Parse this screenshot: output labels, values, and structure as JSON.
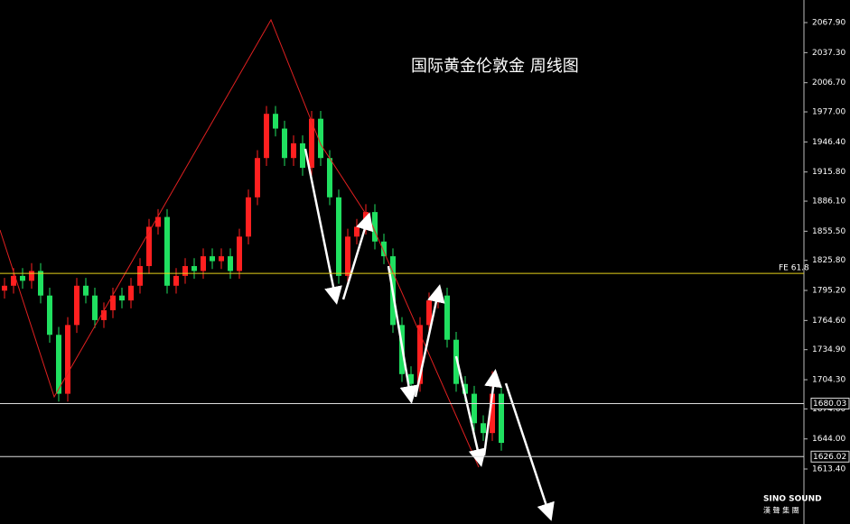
{
  "chart_data": {
    "type": "candlestick",
    "title": "国际黄金伦敦金 周线图",
    "brand": "SINO SOUND",
    "brand_sub": "漢 聲 集 團",
    "ylim": [
      1557.4,
      2090.9
    ],
    "yticks": [
      {
        "value": 2067.9,
        "label": "2067.90"
      },
      {
        "value": 2037.3,
        "label": "2037.30"
      },
      {
        "value": 2006.7,
        "label": "2006.70"
      },
      {
        "value": 1977,
        "label": "1977.00"
      },
      {
        "value": 1946.4,
        "label": "1946.40"
      },
      {
        "value": 1915.8,
        "label": "1915.80"
      },
      {
        "value": 1886.1,
        "label": "1886.10"
      },
      {
        "value": 1855.5,
        "label": "1855.50"
      },
      {
        "value": 1825.8,
        "label": "1825.80"
      },
      {
        "value": 1795.2,
        "label": "1795.20"
      },
      {
        "value": 1764.6,
        "label": "1764.60"
      },
      {
        "value": 1734.9,
        "label": "1734.90"
      },
      {
        "value": 1704.3,
        "label": "1704.30"
      },
      {
        "value": 1674.6,
        "label": "1674.60"
      },
      {
        "value": 1644,
        "label": "1644.00"
      },
      {
        "value": 1613.4,
        "label": "1613.40"
      }
    ],
    "up_color": "#ff2020",
    "down_color": "#20e060",
    "price_lines": [
      1680.03,
      1626.02
    ],
    "fe_line": {
      "name": "FE 61.8",
      "value": 1812.6,
      "color": "#e6d21a"
    },
    "candles": [
      [
        1795,
        1808,
        1787,
        1800
      ],
      [
        1800,
        1818,
        1792,
        1810
      ],
      [
        1810,
        1818,
        1797,
        1805
      ],
      [
        1805,
        1823,
        1797,
        1815
      ],
      [
        1815,
        1823,
        1782,
        1790
      ],
      [
        1790,
        1798,
        1742,
        1750
      ],
      [
        1750,
        1758,
        1682,
        1690
      ],
      [
        1690,
        1768,
        1682,
        1760
      ],
      [
        1760,
        1808,
        1752,
        1800
      ],
      [
        1800,
        1808,
        1782,
        1790
      ],
      [
        1790,
        1798,
        1757,
        1765
      ],
      [
        1765,
        1783,
        1757,
        1775
      ],
      [
        1775,
        1798,
        1767,
        1790
      ],
      [
        1790,
        1798,
        1777,
        1785
      ],
      [
        1785,
        1808,
        1777,
        1800
      ],
      [
        1800,
        1828,
        1792,
        1820
      ],
      [
        1820,
        1868,
        1812,
        1860
      ],
      [
        1860,
        1878,
        1852,
        1870
      ],
      [
        1870,
        1878,
        1792,
        1800
      ],
      [
        1800,
        1818,
        1792,
        1810
      ],
      [
        1810,
        1828,
        1802,
        1820
      ],
      [
        1820,
        1828,
        1807,
        1815
      ],
      [
        1815,
        1838,
        1807,
        1830
      ],
      [
        1830,
        1838,
        1817,
        1825
      ],
      [
        1825,
        1838,
        1817,
        1830
      ],
      [
        1830,
        1838,
        1807,
        1815
      ],
      [
        1815,
        1858,
        1807,
        1850
      ],
      [
        1850,
        1898,
        1842,
        1890
      ],
      [
        1890,
        1938,
        1882,
        1930
      ],
      [
        1930,
        1983,
        1922,
        1975
      ],
      [
        1975,
        1983,
        1952,
        1960
      ],
      [
        1960,
        1968,
        1922,
        1930
      ],
      [
        1930,
        1953,
        1922,
        1945
      ],
      [
        1945,
        1953,
        1912,
        1920
      ],
      [
        1920,
        1978,
        1912,
        1970
      ],
      [
        1970,
        1978,
        1922,
        1930
      ],
      [
        1930,
        1938,
        1882,
        1890
      ],
      [
        1890,
        1898,
        1802,
        1810
      ],
      [
        1810,
        1858,
        1802,
        1850
      ],
      [
        1850,
        1868,
        1842,
        1860
      ],
      [
        1860,
        1883,
        1852,
        1875
      ],
      [
        1875,
        1883,
        1837,
        1845
      ],
      [
        1845,
        1853,
        1822,
        1830
      ],
      [
        1830,
        1838,
        1752,
        1760
      ],
      [
        1760,
        1768,
        1702,
        1710
      ],
      [
        1710,
        1718,
        1692,
        1700
      ],
      [
        1700,
        1768,
        1692,
        1760
      ],
      [
        1760,
        1793,
        1752,
        1785
      ],
      [
        1785,
        1798,
        1777,
        1790
      ],
      [
        1790,
        1798,
        1737,
        1745
      ],
      [
        1745,
        1753,
        1692,
        1700
      ],
      [
        1700,
        1708,
        1682,
        1690
      ],
      [
        1690,
        1698,
        1652,
        1660
      ],
      [
        1660,
        1668,
        1642,
        1650
      ],
      [
        1650,
        1713,
        1642,
        1690
      ],
      [
        1690,
        1698,
        1632,
        1640
      ]
    ]
  }
}
